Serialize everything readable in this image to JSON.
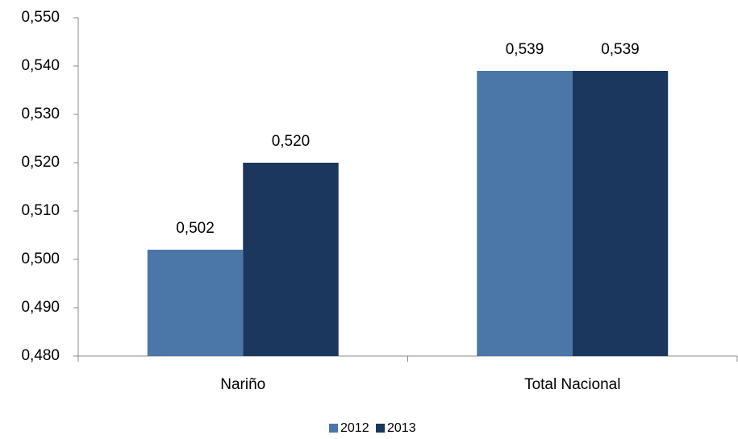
{
  "chart_data": {
    "type": "bar",
    "categories": [
      "Nariño",
      "Total Nacional"
    ],
    "series": [
      {
        "name": "2012",
        "color": "#4a76a8",
        "values": [
          0.502,
          0.539
        ],
        "value_labels": [
          "0,502",
          "0,539"
        ]
      },
      {
        "name": "2013",
        "color": "#1c375e",
        "values": [
          0.52,
          0.539
        ],
        "value_labels": [
          "0,520",
          "0,539"
        ]
      }
    ],
    "ylim": [
      0.48,
      0.55
    ],
    "yticks": [
      {
        "value": 0.48,
        "label": "0,480"
      },
      {
        "value": 0.49,
        "label": "0,490"
      },
      {
        "value": 0.5,
        "label": "0,500"
      },
      {
        "value": 0.51,
        "label": "0,510"
      },
      {
        "value": 0.52,
        "label": "0,520"
      },
      {
        "value": 0.53,
        "label": "0,530"
      },
      {
        "value": 0.54,
        "label": "0,540"
      },
      {
        "value": 0.55,
        "label": "0,550"
      }
    ],
    "grid": false,
    "legend": "bottom"
  }
}
